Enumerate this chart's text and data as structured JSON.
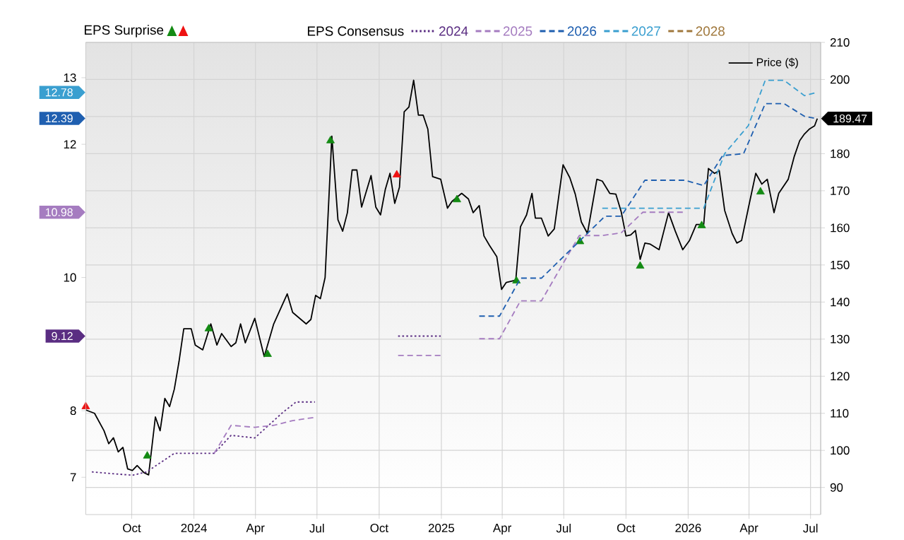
{
  "chart_data": {
    "type": "line",
    "annotations": [
      "EPS Surprise",
      "9.12",
      "10.98",
      "12.39",
      "12.78"
    ],
    "legend_title": "EPS Consensus",
    "xlim": [
      "2023-07-25",
      "2026-07-16"
    ],
    "xticks": [
      {
        "value": "2023-10-01",
        "label": "Oct"
      },
      {
        "value": "2024-01-01",
        "label": "2024"
      },
      {
        "value": "2024-04-01",
        "label": "Apr"
      },
      {
        "value": "2024-07-01",
        "label": "Jul"
      },
      {
        "value": "2024-10-01",
        "label": "Oct"
      },
      {
        "value": "2025-01-01",
        "label": "2025"
      },
      {
        "value": "2025-04-01",
        "label": "Apr"
      },
      {
        "value": "2025-07-01",
        "label": "Jul"
      },
      {
        "value": "2025-10-01",
        "label": "Oct"
      },
      {
        "value": "2026-01-01",
        "label": "2026"
      },
      {
        "value": "2026-04-01",
        "label": "Apr"
      },
      {
        "value": "2026-07-01",
        "label": "Jul"
      }
    ],
    "ylim": [
      6.44,
      13.53
    ],
    "yticks": [
      7,
      8,
      10,
      12,
      13
    ],
    "y2lim": [
      82.7,
      210
    ],
    "y2ticks": [
      90,
      100,
      110,
      120,
      130,
      140,
      150,
      160,
      170,
      180,
      {
        "value": 190,
        "label": null
      },
      200,
      210
    ],
    "grid": true,
    "legend": "top right",
    "series": [
      {
        "name": "2024",
        "color": "#5a2d82",
        "line_style": "dotted",
        "x": [
          "2023-08-03",
          "2023-10-02",
          "2023-10-23",
          "2023-12-03",
          "2024-01-31",
          "2024-02-25",
          "2024-03-31",
          "2024-05-11",
          "2024-05-31",
          "2024-06-28",
          "2024-09-15",
          "2024-10-29",
          "2024-12-31"
        ],
        "values": [
          7.08,
          7.03,
          7.08,
          7.36,
          7.36,
          7.63,
          7.59,
          7.97,
          8.13,
          8.13,
          null,
          9.12,
          9.12
        ]
      },
      {
        "name": "2025",
        "color": "#a57cc0",
        "line_style": "dashed",
        "x": [
          "2024-01-31",
          "2024-02-25",
          "2024-03-31",
          "2024-04-28",
          "2024-05-26",
          "2024-06-28",
          "2024-09-15",
          "2024-10-29",
          "2024-12-31",
          "2025-01-15",
          "2025-02-26",
          "2025-03-28",
          "2025-04-28",
          "2025-05-29",
          "2025-07-24",
          "2025-08-27",
          "2025-09-24",
          "2025-10-26",
          "2025-12-27"
        ],
        "values": [
          7.36,
          7.78,
          7.75,
          7.78,
          7.85,
          7.9,
          null,
          8.83,
          8.83,
          null,
          9.08,
          9.08,
          9.65,
          9.65,
          10.63,
          10.63,
          10.67,
          10.98,
          10.98
        ]
      },
      {
        "name": "2026",
        "color": "#1f5fb0",
        "line_style": "dashed",
        "x": [
          "2025-02-26",
          "2025-03-28",
          "2025-04-28",
          "2025-05-29",
          "2025-08-31",
          "2025-09-24",
          "2025-10-29",
          "2025-12-27",
          "2026-01-24",
          "2026-02-21",
          "2026-03-24",
          "2026-04-25",
          "2026-05-23",
          "2026-06-22",
          "2026-07-07"
        ],
        "values": [
          9.42,
          9.42,
          9.99,
          9.99,
          10.92,
          10.92,
          11.46,
          11.46,
          11.38,
          11.83,
          11.86,
          12.61,
          12.61,
          12.42,
          12.39
        ]
      },
      {
        "name": "2027",
        "color": "#3a9fd0",
        "line_style": "dashed",
        "x": [
          "2025-08-27",
          "2026-01-24",
          "2026-02-24",
          "2026-03-31",
          "2026-04-25",
          "2026-05-23",
          "2026-06-22",
          "2026-07-11"
        ],
        "values": [
          11.04,
          11.04,
          11.86,
          12.28,
          12.96,
          12.96,
          12.73,
          12.78
        ]
      },
      {
        "name": "2028",
        "color": "#a0783c",
        "line_style": "dashed"
      },
      {
        "name": "Price ($)",
        "color": "#000000",
        "axis": "y2",
        "line_style": "solid",
        "x": [
          "2023-07-25",
          "2023-08-07",
          "2023-08-21",
          "2023-08-28",
          "2023-09-04",
          "2023-09-11",
          "2023-09-18",
          "2023-09-25",
          "2023-10-02",
          "2023-10-09",
          "2023-10-19",
          "2023-10-26",
          "2023-11-05",
          "2023-11-12",
          "2023-11-19",
          "2023-11-26",
          "2023-12-03",
          "2023-12-10",
          "2023-12-17",
          "2023-12-28",
          "2024-01-03",
          "2024-01-14",
          "2024-01-26",
          "2024-02-04",
          "2024-02-11",
          "2024-02-25",
          "2024-03-03",
          "2024-03-10",
          "2024-03-17",
          "2024-03-31",
          "2024-04-14",
          "2024-04-28",
          "2024-05-18",
          "2024-05-26",
          "2024-06-15",
          "2024-06-22",
          "2024-06-29",
          "2024-07-06",
          "2024-07-13",
          "2024-07-23",
          "2024-08-01",
          "2024-08-08",
          "2024-08-15",
          "2024-08-22",
          "2024-08-29",
          "2024-09-05",
          "2024-09-19",
          "2024-09-26",
          "2024-10-03",
          "2024-10-10",
          "2024-10-17",
          "2024-10-24",
          "2024-10-31",
          "2024-11-07",
          "2024-11-14",
          "2024-11-21",
          "2024-11-28",
          "2024-12-05",
          "2024-12-12",
          "2024-12-19",
          "2024-12-31",
          "2025-01-10",
          "2025-01-17",
          "2025-01-31",
          "2025-02-10",
          "2025-02-17",
          "2025-02-26",
          "2025-03-05",
          "2025-03-13",
          "2025-03-24",
          "2025-03-31",
          "2025-04-07",
          "2025-04-21",
          "2025-04-28",
          "2025-05-07",
          "2025-05-15",
          "2025-05-20",
          "2025-05-29",
          "2025-06-08",
          "2025-06-17",
          "2025-06-30",
          "2025-07-10",
          "2025-07-18",
          "2025-07-27",
          "2025-08-05",
          "2025-08-19",
          "2025-08-27",
          "2025-09-07",
          "2025-09-16",
          "2025-09-24",
          "2025-10-01",
          "2025-10-08",
          "2025-10-15",
          "2025-10-22",
          "2025-10-29",
          "2025-11-06",
          "2025-11-19",
          "2025-12-03",
          "2025-12-13",
          "2025-12-24",
          "2026-01-03",
          "2026-01-13",
          "2026-01-24",
          "2026-01-31",
          "2026-02-09",
          "2026-02-16",
          "2026-02-24",
          "2026-03-07",
          "2026-03-14",
          "2026-03-21",
          "2026-03-31",
          "2026-04-11",
          "2026-04-20",
          "2026-04-28",
          "2026-05-08",
          "2026-05-15",
          "2026-05-29",
          "2026-06-07",
          "2026-06-15",
          "2026-06-22",
          "2026-06-29",
          "2026-07-07",
          "2026-07-11"
        ],
        "values": [
          110.9,
          110.0,
          105.3,
          101.8,
          103.4,
          99.6,
          100.8,
          95.0,
          94.6,
          95.9,
          94.0,
          93.4,
          109.0,
          105.3,
          114.0,
          111.8,
          116.5,
          124.0,
          132.8,
          132.8,
          128.4,
          127.1,
          134.1,
          128.4,
          131.5,
          128.0,
          129.0,
          134.1,
          129.0,
          135.6,
          125.3,
          134.1,
          142.2,
          137.2,
          134.1,
          135.3,
          141.8,
          140.9,
          146.6,
          184.7,
          162.2,
          159.1,
          164.1,
          175.6,
          175.6,
          165.6,
          174.1,
          165.6,
          163.5,
          170.3,
          174.7,
          166.6,
          171.0,
          191.3,
          192.6,
          199.8,
          190.4,
          190.4,
          186.6,
          173.8,
          173.1,
          165.3,
          167.2,
          169.3,
          167.8,
          164.1,
          166.0,
          157.8,
          155.3,
          152.2,
          143.4,
          145.3,
          145.9,
          160.3,
          163.5,
          169.3,
          162.6,
          162.6,
          157.8,
          159.7,
          177.0,
          173.5,
          169.1,
          161.6,
          158.5,
          173.1,
          172.6,
          169.3,
          169.1,
          164.3,
          157.8,
          158.1,
          159.3,
          151.5,
          155.9,
          155.6,
          154.1,
          164.1,
          159.1,
          154.1,
          156.6,
          160.9,
          160.9,
          176.0,
          174.7,
          175.4,
          164.7,
          158.5,
          155.9,
          156.6,
          165.3,
          174.7,
          171.8,
          173.1,
          164.1,
          169.3,
          173.1,
          179.3,
          183.5,
          185.3,
          186.6,
          187.5,
          189.47
        ],
        "value_labels": [
          null,
          null,
          null,
          null,
          null,
          null,
          null,
          null,
          null,
          null,
          null,
          null,
          null,
          null,
          null,
          null,
          null,
          null,
          null,
          null,
          null,
          null,
          null,
          null,
          null,
          null,
          null,
          null,
          null,
          null,
          null,
          null,
          null,
          null,
          null,
          null,
          null,
          null,
          null,
          null,
          null,
          null,
          null,
          null,
          null,
          null,
          null,
          null,
          null,
          null,
          null,
          null,
          null,
          null,
          null,
          null,
          null,
          null,
          null,
          null,
          null,
          null,
          null,
          null,
          null,
          null,
          null,
          null,
          null,
          null,
          null,
          null,
          null,
          null,
          null,
          null,
          null,
          null,
          null,
          null,
          null,
          null,
          null,
          null,
          null,
          null,
          null,
          null,
          null,
          null,
          null,
          null,
          null,
          null,
          null,
          null,
          null,
          null,
          null,
          null,
          null,
          null,
          null,
          null,
          null,
          null,
          null,
          null,
          null,
          null,
          null,
          null,
          null,
          null,
          null,
          null,
          null,
          null,
          null,
          null,
          null,
          null,
          "189.47"
        ]
      },
      {
        "type": "scatter",
        "marker": "triangle",
        "color": "#138a13",
        "axis": "y2",
        "x": [
          "2023-10-24",
          "2024-01-23",
          "2024-04-19",
          "2024-07-21",
          "2025-01-24",
          "2025-04-22",
          "2025-07-25",
          "2025-10-22",
          "2026-01-21",
          "2026-04-18"
        ],
        "values": [
          98.5,
          132.8,
          125.9,
          183.5,
          167.6,
          145.7,
          156.3,
          149.7,
          160.6,
          169.7
        ]
      },
      {
        "type": "scatter",
        "marker": "triangle",
        "color": "#ee1111",
        "axis": "y2",
        "x": [
          "2023-07-25",
          "2024-10-27"
        ],
        "values": [
          111.8,
          174.3
        ]
      }
    ]
  }
}
